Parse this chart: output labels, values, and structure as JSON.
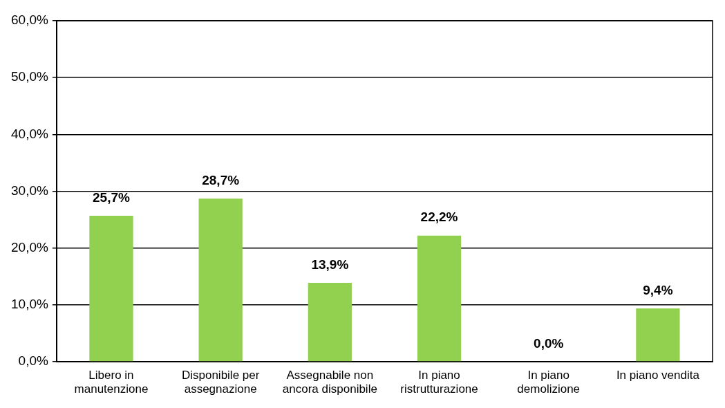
{
  "chart_data": {
    "type": "bar",
    "categories": [
      "Libero in manutenzione",
      "Disponibile per assegnazione",
      "Assegnabile non ancora disponibile",
      "In piano ristrutturazione",
      "In piano demolizione",
      "In piano vendita"
    ],
    "values": [
      25.7,
      28.7,
      13.9,
      22.2,
      0.0,
      9.4
    ],
    "value_labels": [
      "25,7%",
      "28,7%",
      "13,9%",
      "22,2%",
      "0,0%",
      "9,4%"
    ],
    "color": "#92d050",
    "ylim": [
      0,
      60
    ],
    "yticks": [
      {
        "value": 0,
        "label": "0,0%"
      },
      {
        "value": 10,
        "label": "10,0%"
      },
      {
        "value": 20,
        "label": "20,0%"
      },
      {
        "value": 30,
        "label": "30,0%"
      },
      {
        "value": 40,
        "label": "40,0%"
      },
      {
        "value": 50,
        "label": "50,0%"
      },
      {
        "value": 60,
        "label": "60,0%"
      }
    ],
    "grid": "y",
    "legend": false
  }
}
